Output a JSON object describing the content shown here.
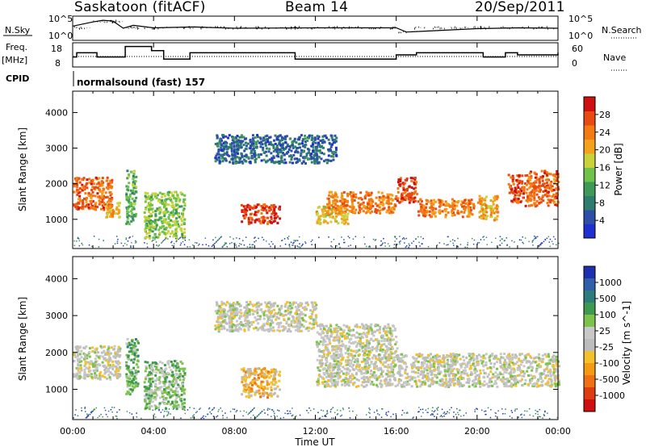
{
  "header": {
    "site": "Saskatoon (fitACF)",
    "beam": "Beam 14",
    "date": "20/Sep/2011"
  },
  "strips": {
    "nsky_label": "N.Sky",
    "nsky_ticks": [
      "10^5",
      "10^0"
    ],
    "nsearch_label": "N.Search",
    "nsearch_ticks": [
      "10^5",
      "10^0"
    ],
    "freq_label_1": "Freq.",
    "freq_label_2": "[MHz]",
    "freq_ticks": [
      "18",
      "8"
    ],
    "nave_label": "Nave",
    "nave_ticks": [
      "60",
      "0"
    ],
    "cpid_label": "CPID",
    "cpid_value": "normalsound (fast) 157"
  },
  "colors": {
    "power": [
      "#1f2fd0",
      "#2e4fa8",
      "#2f7d6f",
      "#3f9a57",
      "#6fc24a",
      "#c8d23a",
      "#f4a21c",
      "#f47a14",
      "#e84a12",
      "#d01010"
    ],
    "velocity": [
      "#1e2fb0",
      "#2e5fa8",
      "#2e7d7c",
      "#3f9a4f",
      "#7dc24a",
      "#c8c8c8",
      "#bdbdbd",
      "#f3c12a",
      "#f49a14",
      "#f07014",
      "#e03c12",
      "#d01010"
    ]
  },
  "chart_data": [
    {
      "type": "line",
      "title": "N.Sky / N.Search",
      "ylabel": "N.Sky",
      "x": [
        0,
        1,
        1.5,
        2,
        2.5,
        3,
        4,
        6,
        8,
        12,
        16,
        16.5,
        20,
        22,
        24
      ],
      "series": [
        {
          "name": "N.Sky",
          "values": [
            3,
            4,
            4.4,
            4.2,
            2.5,
            3.2,
            2.6,
            2.8,
            2.5,
            2.6,
            2.6,
            1.6,
            2.4,
            2.6,
            2.5
          ]
        }
      ],
      "ylim": [
        0,
        5
      ]
    },
    {
      "type": "line",
      "ylabel": "Freq. [MHz]",
      "x": [
        0,
        0.2,
        1.2,
        2.5,
        2.6,
        3.9,
        4.5,
        5.8,
        8,
        11,
        14,
        15.6,
        16,
        17,
        19.8,
        20.3,
        21.4,
        22,
        24
      ],
      "series": [
        {
          "name": "Freq.",
          "values": [
            12,
            14,
            12,
            12,
            17,
            15,
            11,
            14,
            14,
            11,
            11,
            11,
            13,
            14,
            14,
            12,
            14,
            13,
            14
          ]
        }
      ],
      "ylim": [
        8,
        18
      ]
    },
    {
      "type": "heatmap",
      "title": "Power",
      "ylabel": "Slant Range [km]",
      "xlabel": "Time UT",
      "x_ticks": [
        "00:00",
        "04:00",
        "08:00",
        "12:00",
        "16:00",
        "20:00",
        "00:00"
      ],
      "y_ticks": [
        "1000",
        "2000",
        "3000",
        "4000"
      ],
      "ylim": [
        180,
        4600
      ],
      "xlim": [
        0,
        24
      ],
      "colorbar_label": "Power [dB]",
      "colorbar_ticks": [
        "4",
        "8",
        "12",
        "16",
        "20",
        "24",
        "28"
      ],
      "regions": [
        {
          "t0": 0.0,
          "t1": 1.9,
          "r0": 1300,
          "r1": 2200,
          "value": 24
        },
        {
          "t0": 1.6,
          "t1": 2.3,
          "r0": 1050,
          "r1": 1500,
          "value": 20
        },
        {
          "t0": 2.6,
          "t1": 3.1,
          "r0": 900,
          "r1": 2400,
          "value": 12
        },
        {
          "t0": 3.5,
          "t1": 5.5,
          "r0": 500,
          "r1": 1800,
          "value": 14
        },
        {
          "t0": 7.0,
          "t1": 13.0,
          "r0": 2600,
          "r1": 3400,
          "value": 6
        },
        {
          "t0": 8.3,
          "t1": 10.2,
          "r0": 900,
          "r1": 1450,
          "value": 26
        },
        {
          "t0": 12.0,
          "t1": 13.6,
          "r0": 900,
          "r1": 1400,
          "value": 18
        },
        {
          "t0": 12.5,
          "t1": 16.0,
          "r0": 1200,
          "r1": 1800,
          "value": 22
        },
        {
          "t0": 16.0,
          "t1": 17.0,
          "r0": 1500,
          "r1": 2200,
          "value": 26
        },
        {
          "t0": 17.0,
          "t1": 19.8,
          "r0": 1100,
          "r1": 1600,
          "value": 22
        },
        {
          "t0": 20.0,
          "t1": 21.0,
          "r0": 1000,
          "r1": 1700,
          "value": 20
        },
        {
          "t0": 21.5,
          "t1": 22.3,
          "r0": 1500,
          "r1": 2300,
          "value": 26
        },
        {
          "t0": 22.3,
          "t1": 24.0,
          "r0": 1400,
          "r1": 2400,
          "value": 24
        }
      ]
    },
    {
      "type": "heatmap",
      "title": "Velocity",
      "ylabel": "Slant Range [km]",
      "xlabel": "Time UT",
      "x_ticks": [
        "00:00",
        "04:00",
        "08:00",
        "12:00",
        "16:00",
        "20:00",
        "00:00"
      ],
      "y_ticks": [
        "1000",
        "2000",
        "3000",
        "4000"
      ],
      "ylim": [
        180,
        4600
      ],
      "xlim": [
        0,
        24
      ],
      "colorbar_label": "Velocity [m s^-1]",
      "colorbar_ticks": [
        "1000",
        "500",
        "100",
        "25",
        "-25",
        "-100",
        "-500",
        "-1000"
      ],
      "regions": [
        {
          "t0": 0.0,
          "t1": 2.3,
          "r0": 1300,
          "r1": 2200,
          "value": 0
        },
        {
          "t0": 2.6,
          "t1": 3.2,
          "r0": 900,
          "r1": 2400,
          "value": 300
        },
        {
          "t0": 3.5,
          "t1": 5.5,
          "r0": 500,
          "r1": 1800,
          "value": 200
        },
        {
          "t0": 7.0,
          "t1": 12.0,
          "r0": 2600,
          "r1": 3400,
          "value": 0
        },
        {
          "t0": 8.3,
          "t1": 10.2,
          "r0": 800,
          "r1": 1600,
          "value": -300
        },
        {
          "t0": 12.0,
          "t1": 16.0,
          "r0": 1100,
          "r1": 2800,
          "value": 0
        },
        {
          "t0": 16.0,
          "t1": 24.0,
          "r0": 1100,
          "r1": 2000,
          "value": 0
        }
      ]
    }
  ],
  "axes": {
    "xlabel": "Time UT",
    "ylabel_power": "Slant Range [km]",
    "ylabel_velocity": "Slant Range [km]"
  }
}
